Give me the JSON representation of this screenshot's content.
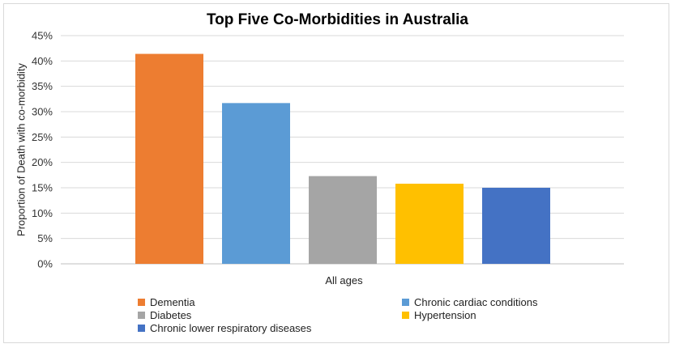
{
  "chart_data": {
    "type": "bar",
    "title": "Top Five Co-Morbidities in Australia",
    "xlabel": "All ages",
    "ylabel": "Proportion of Death with co-morbidity",
    "categories": [
      "All ages"
    ],
    "ylim": [
      0,
      0.45
    ],
    "yticks": [
      "0%",
      "5%",
      "10%",
      "15%",
      "20%",
      "25%",
      "30%",
      "35%",
      "40%",
      "45%"
    ],
    "grid": true,
    "legend_position": "bottom",
    "series": [
      {
        "name": "Dementia",
        "values": [
          0.414
        ],
        "color": "#ed7d31"
      },
      {
        "name": "Chronic cardiac conditions",
        "values": [
          0.317
        ],
        "color": "#5b9bd5"
      },
      {
        "name": "Diabetes",
        "values": [
          0.173
        ],
        "color": "#a5a5a5"
      },
      {
        "name": "Hypertension",
        "values": [
          0.158
        ],
        "color": "#ffc000"
      },
      {
        "name": "Chronic lower respiratory diseases",
        "values": [
          0.15
        ],
        "color": "#4472c4"
      }
    ]
  }
}
